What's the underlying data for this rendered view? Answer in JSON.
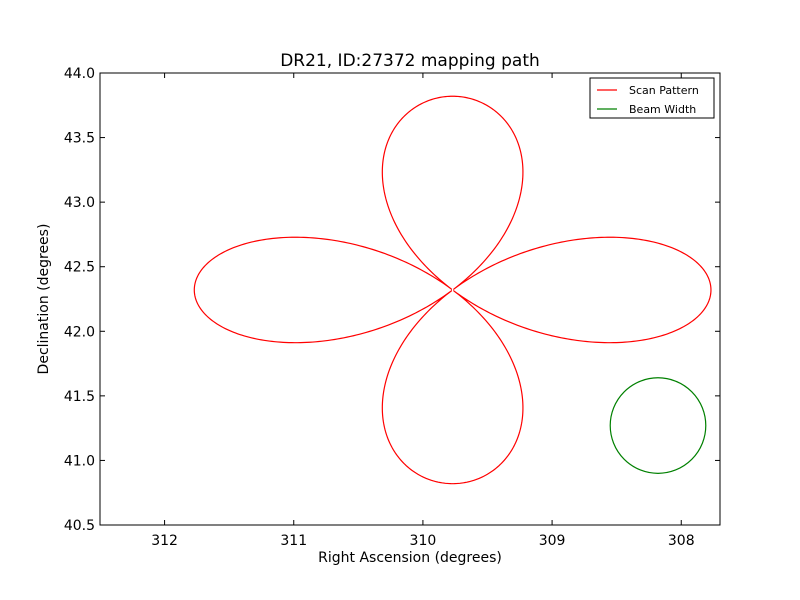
{
  "chart_data": {
    "type": "line",
    "title": "DR21, ID:27372 mapping path",
    "xlabel": "Right Ascension (degrees)",
    "ylabel": "Declination (degrees)",
    "xlim": [
      312.5,
      307.7
    ],
    "ylim": [
      40.5,
      44.0
    ],
    "x_ticks": [
      312,
      311,
      310,
      309,
      308
    ],
    "x_tick_labels": [
      "312",
      "311",
      "310",
      "309",
      "308"
    ],
    "y_ticks": [
      40.5,
      41.0,
      41.5,
      42.0,
      42.5,
      43.0,
      43.5,
      44.0
    ],
    "y_tick_labels": [
      "40.5",
      "41.0",
      "41.5",
      "42.0",
      "42.5",
      "43.0",
      "43.5",
      "44.0"
    ],
    "x_inverted": true,
    "grid": false,
    "legend_position": "top-right",
    "series": [
      {
        "name": "Scan Pattern",
        "color": "#ff0000",
        "shape": "four-petal rosette",
        "center": [
          309.77,
          42.32
        ],
        "horizontal_extent_deg": 2.0,
        "vertical_extent_deg": 1.5,
        "petal_half_width_deg": 0.41
      },
      {
        "name": "Beam Width",
        "color": "#008000",
        "shape": "circle",
        "center": [
          308.18,
          41.27
        ],
        "radius_deg": 0.37
      }
    ]
  }
}
